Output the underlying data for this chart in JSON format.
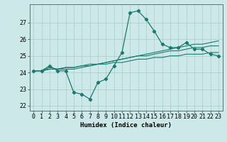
{
  "x": [
    0,
    1,
    2,
    3,
    4,
    5,
    6,
    7,
    8,
    9,
    10,
    11,
    12,
    13,
    14,
    15,
    16,
    17,
    18,
    19,
    20,
    21,
    22,
    23
  ],
  "line1": [
    24.1,
    24.1,
    24.4,
    24.1,
    24.1,
    22.8,
    22.7,
    22.4,
    23.4,
    23.6,
    24.4,
    25.2,
    27.6,
    27.7,
    27.2,
    26.5,
    25.7,
    25.5,
    25.5,
    25.8,
    25.4,
    25.4,
    25.1,
    25.0
  ],
  "line2": [
    24.1,
    24.1,
    24.3,
    24.2,
    24.2,
    24.2,
    24.3,
    24.4,
    24.5,
    24.6,
    24.7,
    24.8,
    24.9,
    25.0,
    25.1,
    25.2,
    25.3,
    25.4,
    25.5,
    25.6,
    25.7,
    25.7,
    25.8,
    25.9
  ],
  "line3": [
    24.1,
    24.1,
    24.2,
    24.2,
    24.3,
    24.3,
    24.4,
    24.4,
    24.5,
    24.5,
    24.6,
    24.6,
    24.7,
    24.8,
    24.8,
    24.9,
    24.9,
    25.0,
    25.0,
    25.1,
    25.1,
    25.1,
    25.2,
    25.2
  ],
  "line4": [
    24.1,
    24.1,
    24.2,
    24.2,
    24.3,
    24.3,
    24.4,
    24.5,
    24.5,
    24.6,
    24.7,
    24.8,
    24.9,
    25.0,
    25.0,
    25.1,
    25.2,
    25.3,
    25.3,
    25.4,
    25.5,
    25.5,
    25.6,
    25.6
  ],
  "line_color": "#1a7a6e",
  "bg_color": "#cce8e8",
  "grid_color": "#aacccc",
  "xlabel": "Humidex (Indice chaleur)",
  "ylabel_ticks": [
    22,
    23,
    24,
    25,
    26,
    27
  ],
  "ylim": [
    21.7,
    28.1
  ],
  "xlim": [
    -0.5,
    23.5
  ],
  "label_fontsize": 6.5,
  "tick_fontsize": 6.0
}
